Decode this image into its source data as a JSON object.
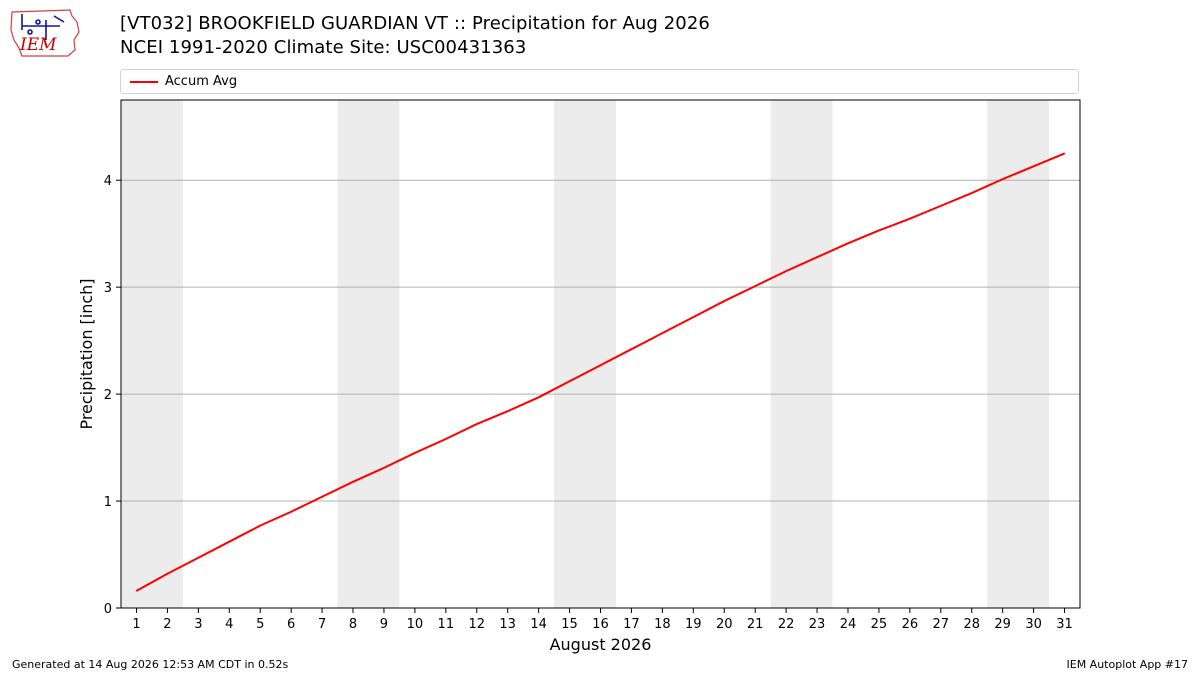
{
  "title_line1": "[VT032] BROOKFIELD GUARDIAN  VT :: Precipitation for Aug 2026",
  "title_line2": "NCEI 1991-2020 Climate Site: USC00431363",
  "logo_text": "IEM",
  "footer_left": "Generated at 14 Aug 2026 12:53 AM CDT in 0.52s",
  "footer_right": "IEM Autoplot App #17",
  "colors": {
    "series": "#ff0000",
    "weekend_shade": "#ececec",
    "grid": "#b0b0b0",
    "logo": "#cc0000"
  },
  "chart_data": {
    "type": "line",
    "xlabel": "August 2026",
    "ylabel": "Precipitation [inch]",
    "x_ticks": [
      "1",
      "2",
      "3",
      "4",
      "5",
      "6",
      "7",
      "8",
      "9",
      "10",
      "11",
      "12",
      "13",
      "14",
      "15",
      "16",
      "17",
      "18",
      "19",
      "20",
      "21",
      "22",
      "23",
      "24",
      "25",
      "26",
      "27",
      "28",
      "29",
      "30",
      "31"
    ],
    "y_ticks": [
      "0",
      "1",
      "2",
      "3",
      "4"
    ],
    "ylim": [
      0,
      4.75
    ],
    "xlim": [
      0.5,
      31.5
    ],
    "grid": "horizontal",
    "legend_position": "top",
    "shaded_weekends": [
      [
        1,
        2
      ],
      [
        8,
        9
      ],
      [
        15,
        16
      ],
      [
        22,
        23
      ],
      [
        29,
        30
      ]
    ],
    "series": [
      {
        "name": "Accum Avg",
        "color": "#ff0000",
        "x": [
          1,
          2,
          3,
          4,
          5,
          6,
          7,
          8,
          9,
          10,
          11,
          12,
          13,
          14,
          15,
          16,
          17,
          18,
          19,
          20,
          21,
          22,
          23,
          24,
          25,
          26,
          27,
          28,
          29,
          30,
          31
        ],
        "values": [
          0.16,
          0.32,
          0.47,
          0.62,
          0.77,
          0.9,
          1.04,
          1.18,
          1.31,
          1.45,
          1.58,
          1.72,
          1.84,
          1.97,
          2.12,
          2.27,
          2.42,
          2.57,
          2.72,
          2.87,
          3.01,
          3.15,
          3.28,
          3.41,
          3.53,
          3.64,
          3.76,
          3.88,
          4.01,
          4.13,
          4.25
        ]
      }
    ]
  }
}
